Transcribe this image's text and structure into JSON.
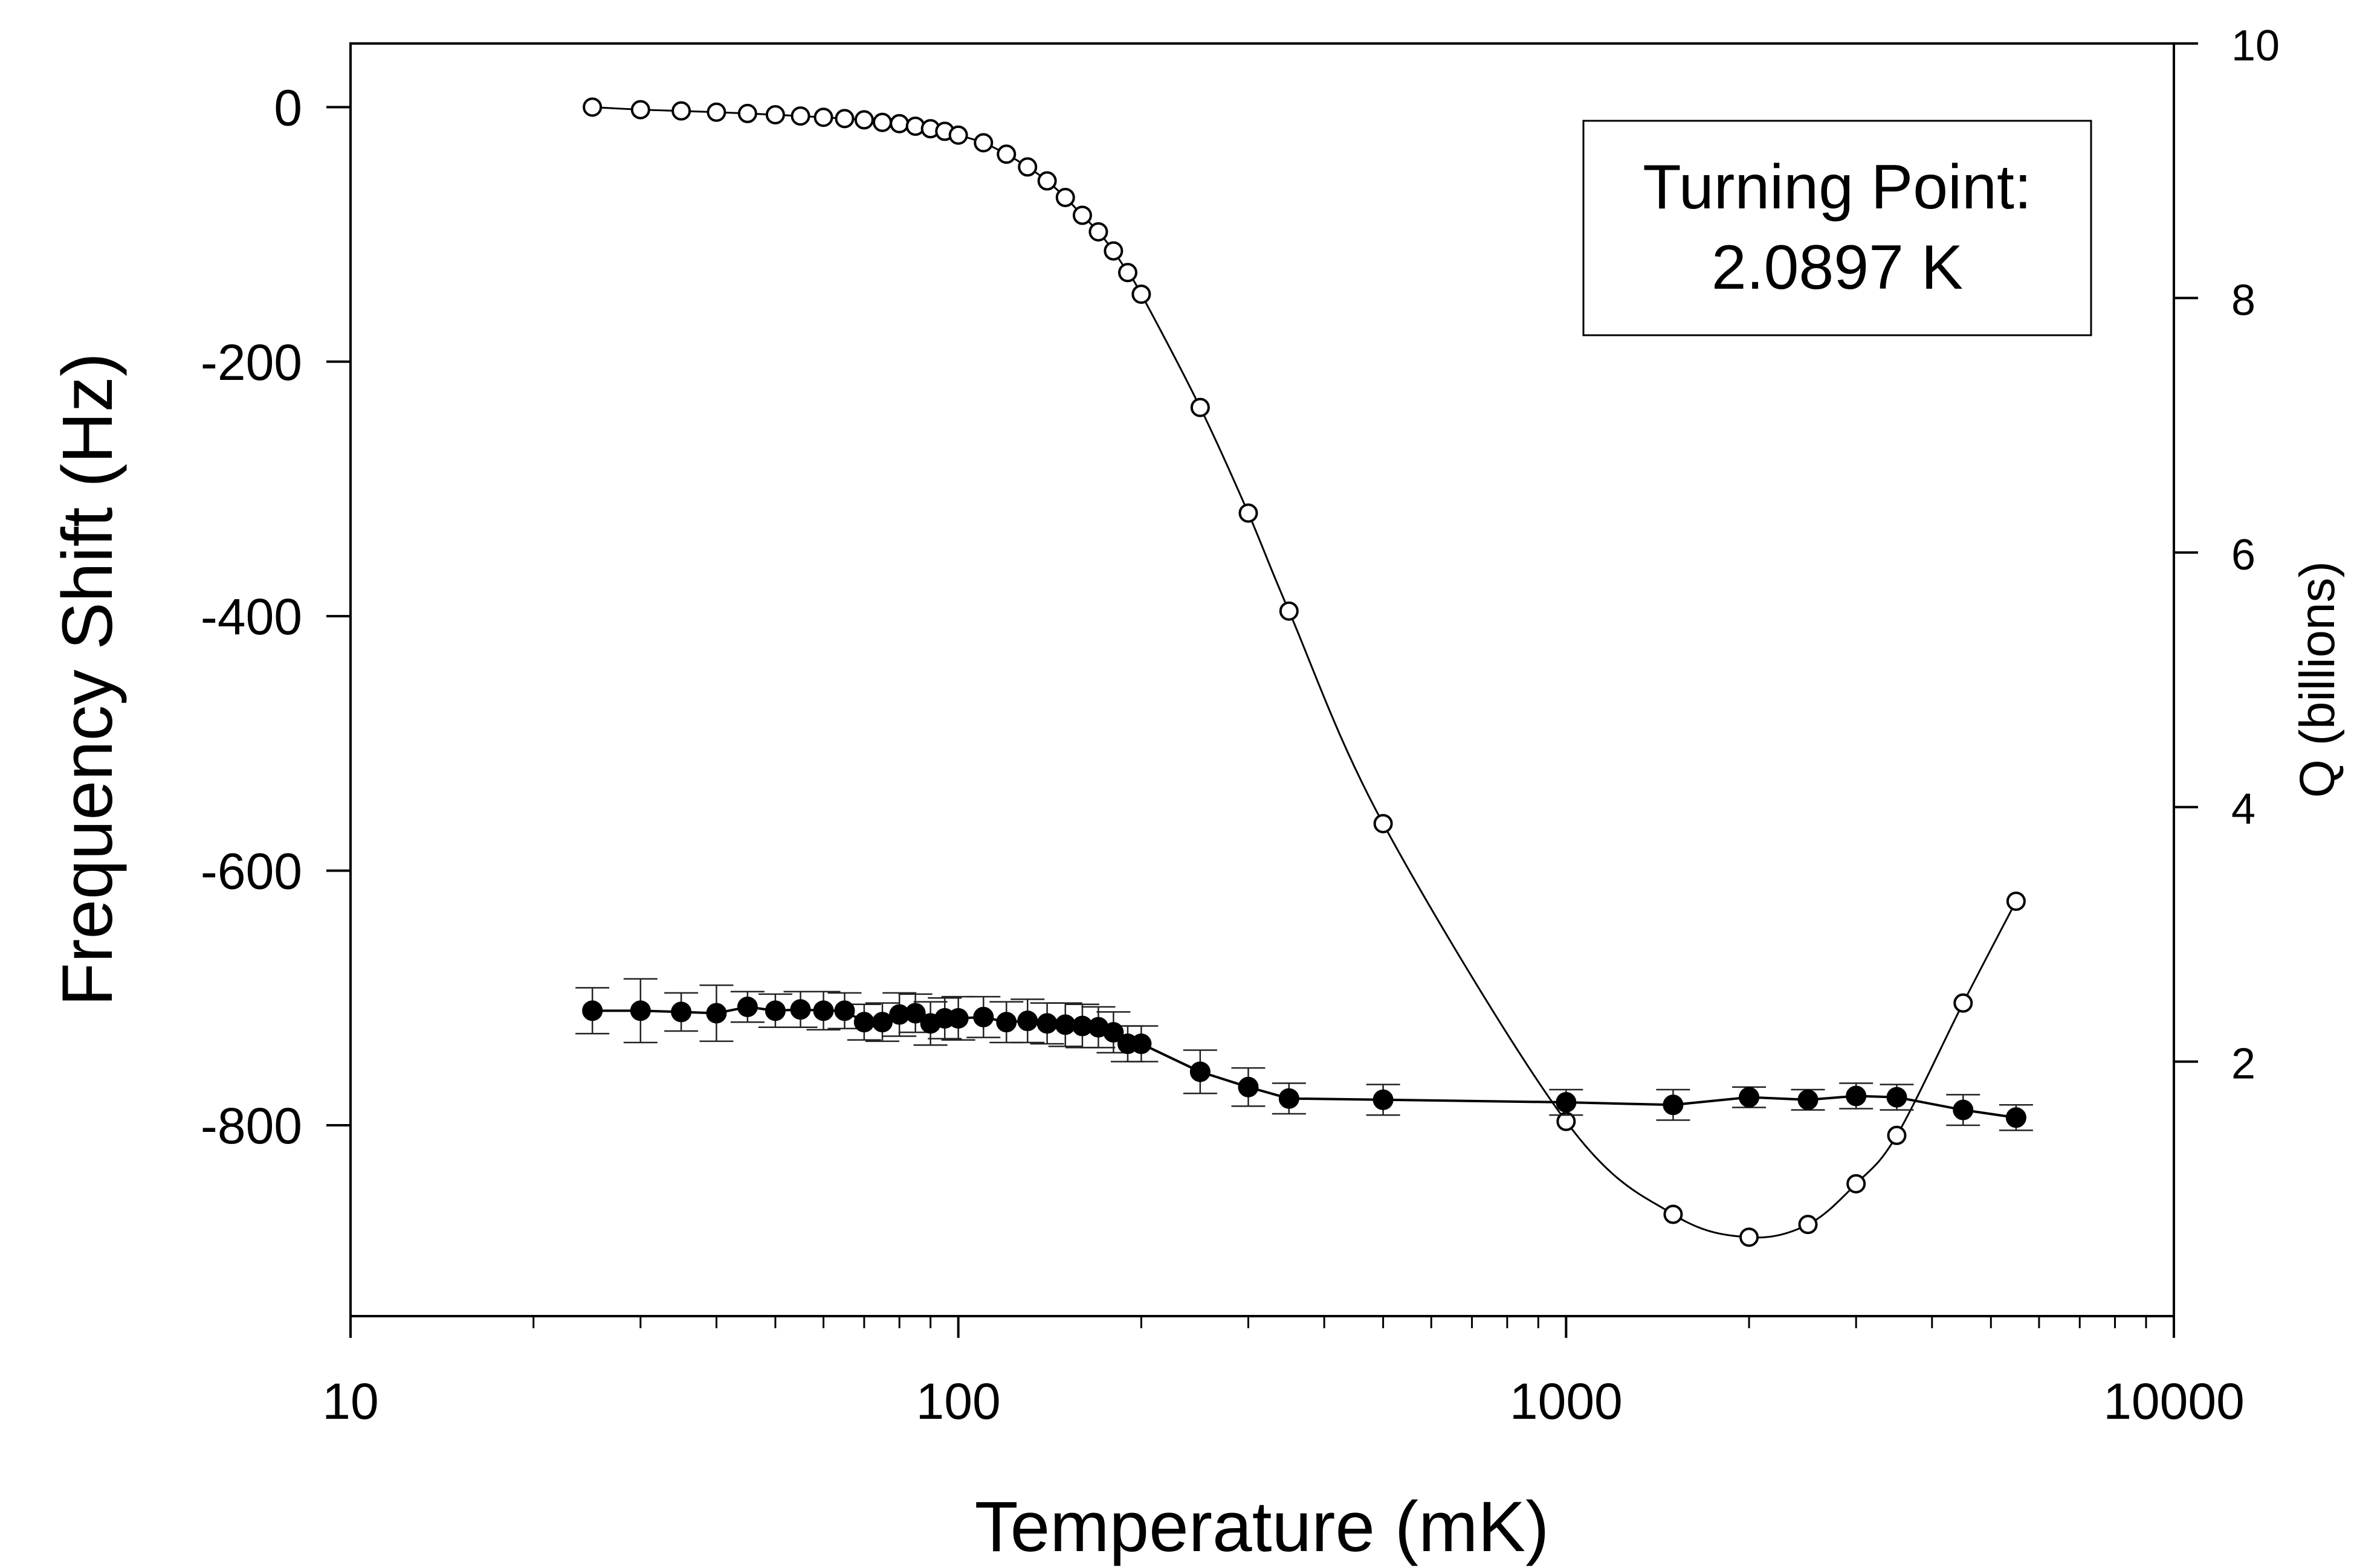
{
  "chart_data": {
    "type": "scatter",
    "title": "",
    "xlabel": "Temperature (mK)",
    "ylabel": "Frequency Shift (Hz)",
    "y2label": "Q (billions)",
    "xscale": "log",
    "xlim": [
      10,
      10000
    ],
    "ylim": [
      -950,
      50
    ],
    "y2lim": [
      0,
      10
    ],
    "x_ticks": [
      10,
      100,
      1000,
      10000
    ],
    "x_tick_labels": [
      "10",
      "100",
      "1000",
      "10000"
    ],
    "y_ticks": [
      0,
      -200,
      -400,
      -600,
      -800
    ],
    "y_tick_labels": [
      "0",
      "-200",
      "-400",
      "-600",
      "-800"
    ],
    "y2_ticks": [
      2,
      4,
      6,
      8,
      10
    ],
    "y2_tick_labels": [
      "2",
      "4",
      "6",
      "8",
      "10"
    ],
    "annotation": {
      "line1": "Turning Point:",
      "line2": "2.0897 K"
    },
    "series": [
      {
        "name": "Frequency Shift",
        "axis": "left",
        "marker": "open-circle",
        "line": "smooth",
        "x": [
          25,
          30,
          35,
          40,
          45,
          50,
          55,
          60,
          65,
          70,
          75,
          80,
          85,
          90,
          95,
          100,
          110,
          120,
          130,
          140,
          150,
          160,
          170,
          180,
          190,
          200,
          250,
          300,
          350,
          500,
          1000,
          1500,
          2000,
          2500,
          3000,
          3500,
          4500,
          5500
        ],
        "y": [
          0,
          -2,
          -3,
          -4,
          -5,
          -6,
          -7,
          -8,
          -9,
          -10,
          -12,
          -13,
          -15,
          -17,
          -19,
          -22,
          -28,
          -37,
          -47,
          -58,
          -71,
          -85,
          -98,
          -113,
          -130,
          -147,
          -236,
          -319,
          -396,
          -563,
          -797,
          -870,
          -888,
          -878,
          -846,
          -808,
          -704,
          -624
        ]
      },
      {
        "name": "Q",
        "axis": "right",
        "marker": "filled-circle",
        "line": "straight",
        "x": [
          25,
          30,
          35,
          40,
          45,
          50,
          55,
          60,
          65,
          70,
          75,
          80,
          85,
          90,
          95,
          100,
          110,
          120,
          130,
          140,
          150,
          160,
          170,
          180,
          190,
          200,
          250,
          300,
          350,
          500,
          1000,
          1500,
          2000,
          2500,
          3000,
          3500,
          4500,
          5500
        ],
        "y": [
          2.4,
          2.4,
          2.39,
          2.38,
          2.43,
          2.4,
          2.41,
          2.4,
          2.4,
          2.31,
          2.31,
          2.37,
          2.38,
          2.3,
          2.34,
          2.34,
          2.35,
          2.31,
          2.32,
          2.3,
          2.29,
          2.28,
          2.27,
          2.23,
          2.14,
          2.14,
          1.92,
          1.8,
          1.71,
          1.7,
          1.68,
          1.66,
          1.72,
          1.7,
          1.73,
          1.72,
          1.62,
          1.56
        ],
        "error": [
          0.18,
          0.25,
          0.15,
          0.22,
          0.12,
          0.13,
          0.14,
          0.15,
          0.14,
          0.14,
          0.15,
          0.17,
          0.15,
          0.17,
          0.16,
          0.17,
          0.16,
          0.16,
          0.17,
          0.16,
          0.17,
          0.17,
          0.16,
          0.16,
          0.14,
          0.14,
          0.17,
          0.15,
          0.12,
          0.12,
          0.1,
          0.12,
          0.08,
          0.08,
          0.1,
          0.1,
          0.12,
          0.1
        ]
      }
    ]
  }
}
